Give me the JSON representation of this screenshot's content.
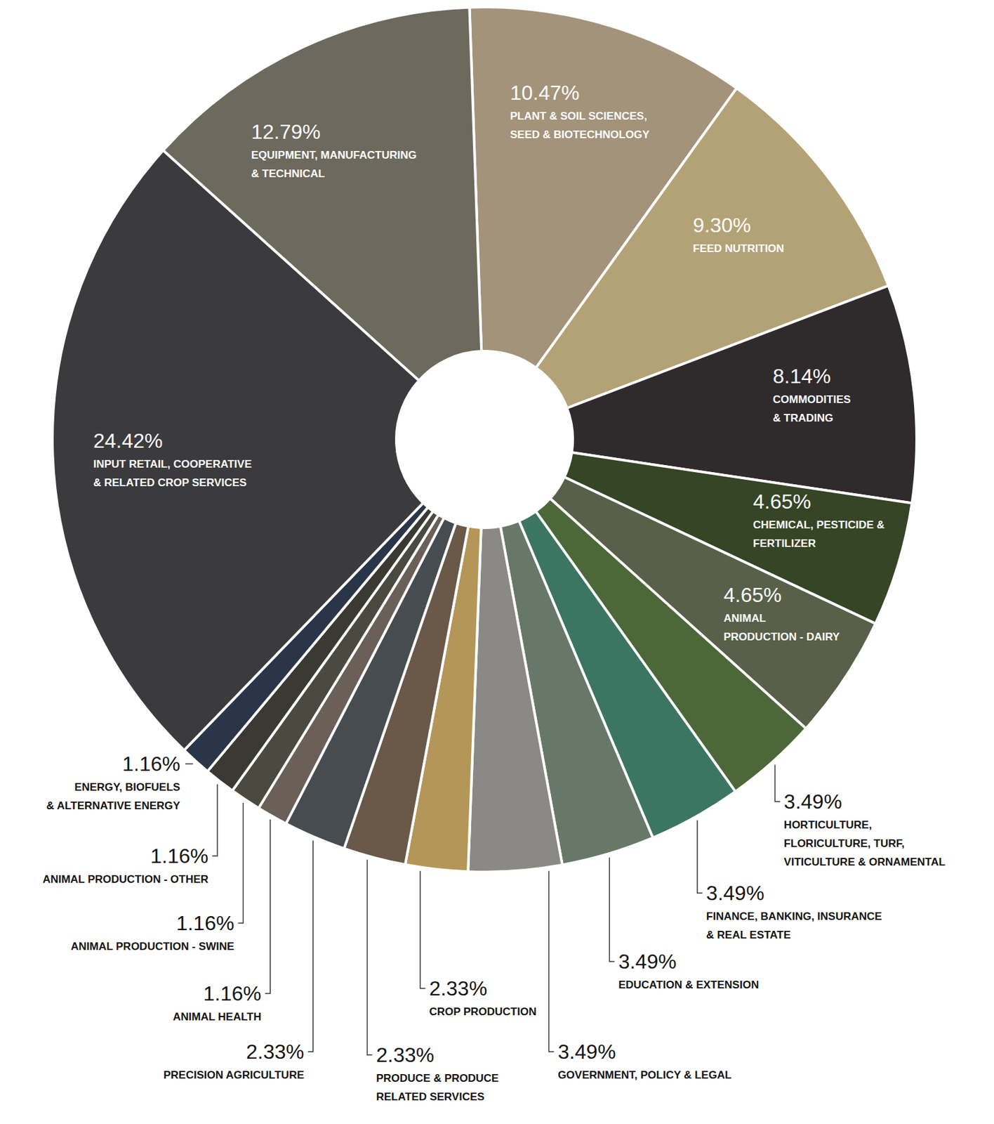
{
  "chart_data": {
    "type": "pie",
    "categories": [
      "PLANT & SOIL SCIENCES, SEED & BIOTECHNOLOGY",
      "FEED NUTRITION",
      "COMMODITIES & TRADING",
      "CHEMICAL, PESTICIDE & FERTILIZER",
      "ANIMAL PRODUCTION - DAIRY",
      "HORTICULTURE, FLORICULTURE, TURF, VITICULTURE & ORNAMENTAL",
      "FINANCE, BANKING, INSURANCE & REAL ESTATE",
      "EDUCATION & EXTENSION",
      "GOVERNMENT, POLICY & LEGAL",
      "CROP PRODUCTION",
      "PRODUCE & PRODUCE RELATED SERVICES",
      "PRECISION AGRICULTURE",
      "ANIMAL HEALTH",
      "ANIMAL PRODUCTION - SWINE",
      "ANIMAL PRODUCTION - OTHER",
      "ENERGY, BIOFUELS & ALTERNATIVE ENERGY",
      "INPUT RETAIL, COOPERATIVE & RELATED CROP SERVICES",
      "EQUIPMENT, MANUFACTURING & TECHNICAL"
    ],
    "values": [
      10.47,
      9.3,
      8.14,
      4.65,
      4.65,
      3.49,
      3.49,
      3.49,
      3.49,
      2.33,
      2.33,
      2.33,
      1.16,
      1.16,
      1.16,
      1.16,
      24.42,
      12.79
    ],
    "value_labels": [
      "10.47%",
      "9.30%",
      "8.14%",
      "4.65%",
      "4.65%",
      "3.49%",
      "3.49%",
      "3.49%",
      "3.49%",
      "2.33%",
      "2.33%",
      "2.33%",
      "1.16%",
      "1.16%",
      "1.16%",
      "1.16%",
      "24.42%",
      "12.79%"
    ],
    "colors": [
      "#a2937a",
      "#b3a276",
      "#2f2b2d",
      "#354526",
      "#58604a",
      "#4d6838",
      "#3c7663",
      "#687868",
      "#8a8985",
      "#b39658",
      "#6a5948",
      "#474c51",
      "#6a6058",
      "#4a4a40",
      "#3a3a33",
      "#2b3549",
      "#3b3b3d",
      "#6d695d"
    ],
    "data_labels": true
  }
}
